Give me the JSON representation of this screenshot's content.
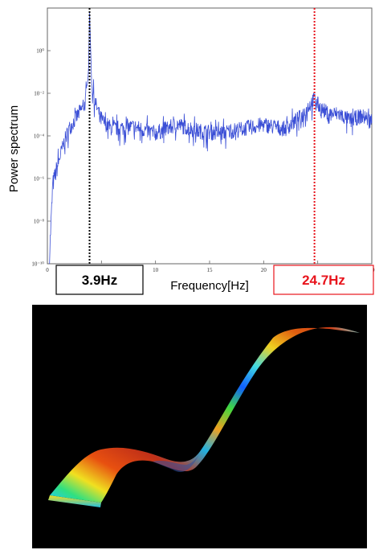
{
  "chart_data": {
    "type": "line",
    "title": "",
    "xlabel": "Frequency[Hz]",
    "ylabel": "Power spectrum",
    "xlim": [
      0,
      30
    ],
    "ylim_log10": [
      -10,
      2
    ],
    "x_ticks": [
      "0",
      "5",
      "10",
      "15",
      "20",
      "25",
      "30"
    ],
    "y_ticks": [
      "10⁻¹⁰",
      "10⁻⁸",
      "10⁻⁶",
      "10⁻⁴",
      "10⁻²",
      "10⁰"
    ],
    "grid": false,
    "series_color": "#3b4fd6",
    "peaks": [
      {
        "x": 3.9,
        "label": "3.9Hz",
        "color": "#000000"
      },
      {
        "x": 24.7,
        "label": "24.7Hz",
        "color": "#e8141c"
      }
    ],
    "series": [
      {
        "x": [
          0.2,
          0.5,
          1.0,
          1.5,
          2.0,
          2.5,
          3.0,
          3.5,
          3.8,
          3.9,
          4.1,
          4.5,
          5.0,
          6.0,
          8.0,
          10.0,
          12.0,
          14.0,
          16.0,
          18.0,
          20.0,
          22.0,
          23.5,
          24.2,
          24.7,
          25.2,
          26.0,
          27.0,
          28.0,
          29.0,
          30.0
        ],
        "log10_power": [
          -9.5,
          -6.2,
          -5.2,
          -4.3,
          -3.6,
          -3.2,
          -2.8,
          -2.4,
          -1.0,
          1.9,
          -1.6,
          -2.5,
          -3.2,
          -3.6,
          -3.5,
          -3.8,
          -3.4,
          -3.7,
          -3.8,
          -3.6,
          -3.4,
          -3.6,
          -3.0,
          -2.5,
          -2.2,
          -2.6,
          -2.9,
          -2.9,
          -3.2,
          -3.0,
          -3.2
        ]
      }
    ]
  },
  "simulation": {
    "background": "#000000",
    "colormap": [
      "#1060ff",
      "#00c8ff",
      "#20e060",
      "#f0e020",
      "#f08010",
      "#c02010"
    ]
  }
}
